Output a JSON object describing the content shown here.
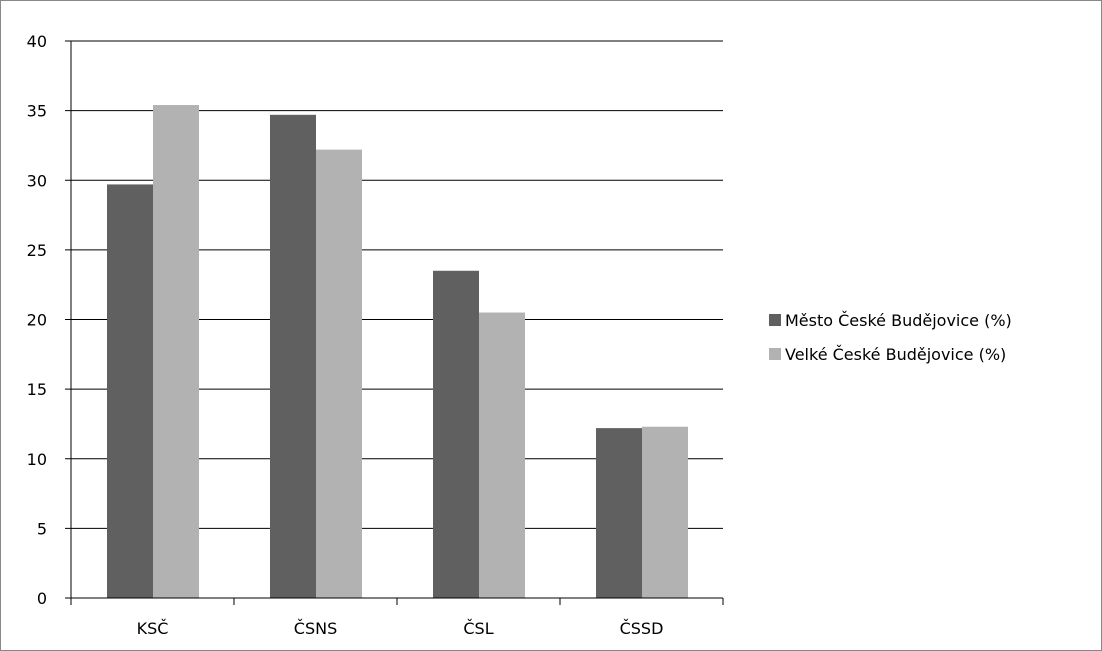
{
  "chart_data": {
    "type": "bar",
    "categories": [
      "KSČ",
      "ČSNS",
      "ČSL",
      "ČSSD"
    ],
    "series": [
      {
        "name": "Město České Budějovice (%)",
        "values": [
          29.7,
          34.7,
          23.5,
          12.2
        ],
        "color": "#606060"
      },
      {
        "name": "Velké České Budějovice (%)",
        "values": [
          35.4,
          32.2,
          20.5,
          12.3
        ],
        "color": "#b2b2b2"
      }
    ],
    "y_ticks": [
      "0",
      "5",
      "10",
      "15",
      "20",
      "25",
      "30",
      "35",
      "40"
    ],
    "ylim": [
      0,
      40
    ],
    "grid": true,
    "legend_position": "right"
  }
}
